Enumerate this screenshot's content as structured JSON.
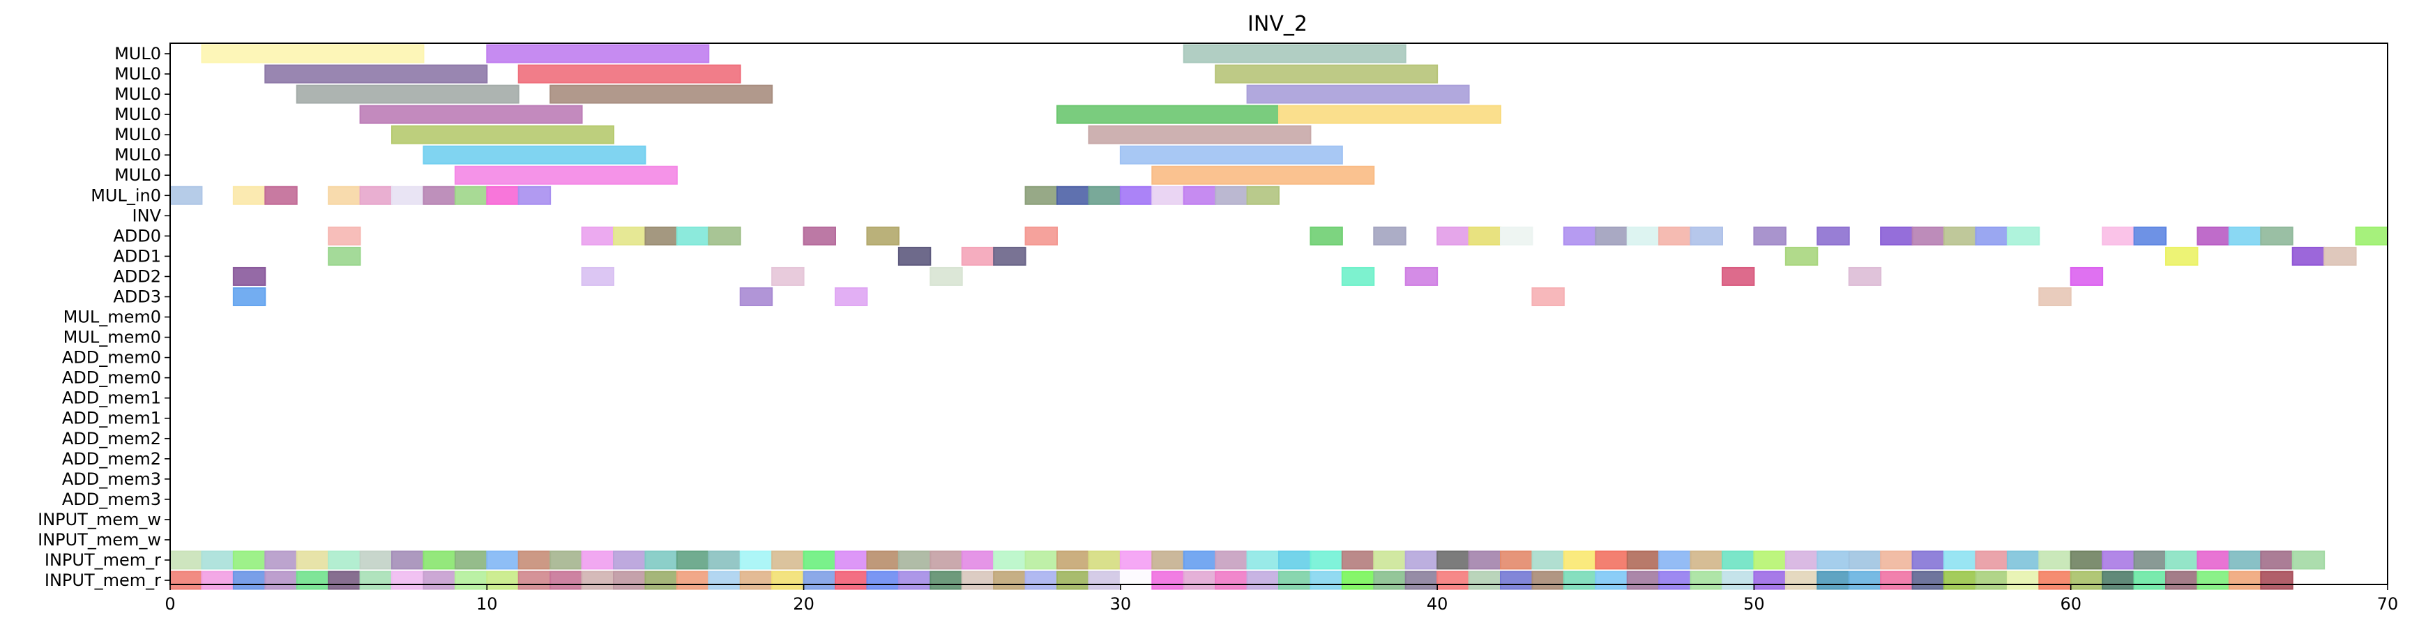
{
  "chart_data": {
    "type": "gantt",
    "title": "INV_2",
    "xlabel": "",
    "ylabel": "",
    "xlim": [
      0,
      70
    ],
    "xticks": [
      "0",
      "10",
      "20",
      "30",
      "40",
      "50",
      "60",
      "70"
    ],
    "grid": false,
    "rows": [
      "MUL0",
      "MUL0",
      "MUL0",
      "MUL0",
      "MUL0",
      "MUL0",
      "MUL0",
      "MUL_in0",
      "INV",
      "ADD0",
      "ADD1",
      "ADD2",
      "ADD3",
      "MUL_mem0",
      "MUL_mem0",
      "ADD_mem0",
      "ADD_mem0",
      "ADD_mem1",
      "ADD_mem1",
      "ADD_mem2",
      "ADD_mem2",
      "ADD_mem3",
      "ADD_mem3",
      "INPUT_mem_w",
      "INPUT_mem_w",
      "INPUT_mem_r",
      "INPUT_mem_r"
    ],
    "bars": [
      {
        "row": 0,
        "start": 1,
        "end": 8,
        "color": "#fdf5b0"
      },
      {
        "row": 0,
        "start": 10,
        "end": 17,
        "color": "#c07ef0"
      },
      {
        "row": 0,
        "start": 32,
        "end": 39,
        "color": "#a9c9bd"
      },
      {
        "row": 1,
        "start": 3,
        "end": 10,
        "color": "#8e79a8"
      },
      {
        "row": 1,
        "start": 11,
        "end": 18,
        "color": "#ef6f7c"
      },
      {
        "row": 1,
        "start": 33,
        "end": 40,
        "color": "#b7c479"
      },
      {
        "row": 2,
        "start": 4,
        "end": 11,
        "color": "#a4aca9"
      },
      {
        "row": 2,
        "start": 12,
        "end": 19,
        "color": "#a88e80"
      },
      {
        "row": 2,
        "start": 34,
        "end": 41,
        "color": "#a99fd9"
      },
      {
        "row": 3,
        "start": 6,
        "end": 13,
        "color": "#bc7db7"
      },
      {
        "row": 3,
        "start": 28,
        "end": 35,
        "color": "#6cc770"
      },
      {
        "row": 3,
        "start": 35,
        "end": 42,
        "color": "#f9db81"
      },
      {
        "row": 4,
        "start": 7,
        "end": 14,
        "color": "#b6ca6f"
      },
      {
        "row": 4,
        "start": 29,
        "end": 36,
        "color": "#c8a9a8"
      },
      {
        "row": 5,
        "start": 8,
        "end": 15,
        "color": "#72cff0"
      },
      {
        "row": 5,
        "start": 30,
        "end": 37,
        "color": "#9fc2f3"
      },
      {
        "row": 6,
        "start": 9,
        "end": 16,
        "color": "#f487e6"
      },
      {
        "row": 6,
        "start": 31,
        "end": 38,
        "color": "#f9bb84"
      },
      {
        "row": 7,
        "start": 0,
        "end": 1,
        "color": "#aec6e6"
      },
      {
        "row": 7,
        "start": 2,
        "end": 3,
        "color": "#fbe8a8"
      },
      {
        "row": 7,
        "start": 3,
        "end": 4,
        "color": "#c26b97"
      },
      {
        "row": 7,
        "start": 5,
        "end": 6,
        "color": "#f7d7a4"
      },
      {
        "row": 7,
        "start": 6,
        "end": 7,
        "color": "#e7a6cc"
      },
      {
        "row": 7,
        "start": 7,
        "end": 8,
        "color": "#e7e1f3"
      },
      {
        "row": 7,
        "start": 8,
        "end": 9,
        "color": "#b784b4"
      },
      {
        "row": 7,
        "start": 9,
        "end": 10,
        "color": "#9ed68a"
      },
      {
        "row": 7,
        "start": 10,
        "end": 11,
        "color": "#f767d6"
      },
      {
        "row": 7,
        "start": 11,
        "end": 12,
        "color": "#a88ff0"
      },
      {
        "row": 7,
        "start": 27,
        "end": 28,
        "color": "#8ca07a"
      },
      {
        "row": 7,
        "start": 28,
        "end": 29,
        "color": "#4e62a6"
      },
      {
        "row": 7,
        "start": 29,
        "end": 30,
        "color": "#6aa08e"
      },
      {
        "row": 7,
        "start": 30,
        "end": 31,
        "color": "#a276f6"
      },
      {
        "row": 7,
        "start": 31,
        "end": 32,
        "color": "#e8d0f2"
      },
      {
        "row": 7,
        "start": 32,
        "end": 33,
        "color": "#c07ef0"
      },
      {
        "row": 7,
        "start": 33,
        "end": 34,
        "color": "#b4b0cc"
      },
      {
        "row": 7,
        "start": 34,
        "end": 35,
        "color": "#b1c47f"
      },
      {
        "row": 9,
        "start": 5,
        "end": 6,
        "color": "#f6b7b2"
      },
      {
        "row": 9,
        "start": 13,
        "end": 14,
        "color": "#eaa1ee"
      },
      {
        "row": 9,
        "start": 14,
        "end": 15,
        "color": "#e3e58a"
      },
      {
        "row": 9,
        "start": 15,
        "end": 16,
        "color": "#9a8d72"
      },
      {
        "row": 9,
        "start": 16,
        "end": 17,
        "color": "#7fe8d8"
      },
      {
        "row": 9,
        "start": 17,
        "end": 18,
        "color": "#9fbf89"
      },
      {
        "row": 9,
        "start": 20,
        "end": 21,
        "color": "#b56a9b"
      },
      {
        "row": 9,
        "start": 22,
        "end": 23,
        "color": "#b2a86c"
      },
      {
        "row": 9,
        "start": 27,
        "end": 28,
        "color": "#f49891"
      },
      {
        "row": 9,
        "start": 36,
        "end": 37,
        "color": "#6fcf72"
      },
      {
        "row": 9,
        "start": 38,
        "end": 39,
        "color": "#a3a4c0"
      },
      {
        "row": 9,
        "start": 40,
        "end": 41,
        "color": "#e29ce8"
      },
      {
        "row": 9,
        "start": 41,
        "end": 42,
        "color": "#e6df72"
      },
      {
        "row": 9,
        "start": 42,
        "end": 43,
        "color": "#ecf4f1"
      },
      {
        "row": 9,
        "start": 44,
        "end": 45,
        "color": "#ae90f0"
      },
      {
        "row": 9,
        "start": 45,
        "end": 46,
        "color": "#a0a0bd"
      },
      {
        "row": 9,
        "start": 46,
        "end": 47,
        "color": "#d9f3f0"
      },
      {
        "row": 9,
        "start": 47,
        "end": 48,
        "color": "#f4b4aa"
      },
      {
        "row": 9,
        "start": 48,
        "end": 49,
        "color": "#aec1e9"
      },
      {
        "row": 9,
        "start": 50,
        "end": 51,
        "color": "#a088c8"
      },
      {
        "row": 9,
        "start": 52,
        "end": 53,
        "color": "#8d70d0"
      },
      {
        "row": 9,
        "start": 54,
        "end": 55,
        "color": "#8a5ed6"
      },
      {
        "row": 9,
        "start": 55,
        "end": 56,
        "color": "#b67fb2"
      },
      {
        "row": 9,
        "start": 56,
        "end": 57,
        "color": "#b8c28f"
      },
      {
        "row": 9,
        "start": 57,
        "end": 58,
        "color": "#8f9df0"
      },
      {
        "row": 9,
        "start": 58,
        "end": 59,
        "color": "#a6f2d8"
      },
      {
        "row": 9,
        "start": 61,
        "end": 62,
        "color": "#f9bde6"
      },
      {
        "row": 9,
        "start": 62,
        "end": 63,
        "color": "#5e86e2"
      },
      {
        "row": 9,
        "start": 64,
        "end": 65,
        "color": "#b85cc4"
      },
      {
        "row": 9,
        "start": 65,
        "end": 66,
        "color": "#7dd4f2"
      },
      {
        "row": 9,
        "start": 66,
        "end": 67,
        "color": "#8fb89a"
      },
      {
        "row": 9,
        "start": 69,
        "end": 70,
        "color": "#9cf06e"
      },
      {
        "row": 10,
        "start": 5,
        "end": 6,
        "color": "#9ad68e"
      },
      {
        "row": 10,
        "start": 23,
        "end": 24,
        "color": "#5e5a7e"
      },
      {
        "row": 10,
        "start": 25,
        "end": 26,
        "color": "#f4a4b8"
      },
      {
        "row": 10,
        "start": 26,
        "end": 27,
        "color": "#6a6488"
      },
      {
        "row": 10,
        "start": 51,
        "end": 52,
        "color": "#a9d67e"
      },
      {
        "row": 10,
        "start": 63,
        "end": 64,
        "color": "#ebf266"
      },
      {
        "row": 10,
        "start": 67,
        "end": 68,
        "color": "#9157d6"
      },
      {
        "row": 10,
        "start": 68,
        "end": 69,
        "color": "#dcc2b5"
      },
      {
        "row": 11,
        "start": 2,
        "end": 3,
        "color": "#8a5a9c"
      },
      {
        "row": 11,
        "start": 13,
        "end": 14,
        "color": "#d8c0f2"
      },
      {
        "row": 11,
        "start": 19,
        "end": 20,
        "color": "#e5c5d8"
      },
      {
        "row": 11,
        "start": 24,
        "end": 25,
        "color": "#d8e4d3"
      },
      {
        "row": 11,
        "start": 37,
        "end": 38,
        "color": "#6ff1ca"
      },
      {
        "row": 11,
        "start": 39,
        "end": 40,
        "color": "#cf7fe3"
      },
      {
        "row": 11,
        "start": 49,
        "end": 50,
        "color": "#d95b7f"
      },
      {
        "row": 11,
        "start": 53,
        "end": 54,
        "color": "#ddbcd6"
      },
      {
        "row": 11,
        "start": 60,
        "end": 61,
        "color": "#db62ef"
      },
      {
        "row": 12,
        "start": 2,
        "end": 3,
        "color": "#64a4ef"
      },
      {
        "row": 12,
        "start": 18,
        "end": 19,
        "color": "#a88ad3"
      },
      {
        "row": 12,
        "start": 21,
        "end": 22,
        "color": "#dfa6f3"
      },
      {
        "row": 12,
        "start": 43,
        "end": 44,
        "color": "#f6b0b4"
      },
      {
        "row": 12,
        "start": 59,
        "end": 60,
        "color": "#e7c7b6"
      }
    ],
    "row25_colors": [
      "#c9e2b8",
      "#a9e0d9",
      "#94f07d",
      "#b59ac9",
      "#e4e0a0",
      "#abeccc",
      "#c2d1c6",
      "#a48eb8",
      "#88e56e",
      "#89b57e",
      "#82b7f5",
      "#c78e78",
      "#a5b58f",
      "#f09ff0",
      "#b7a0da",
      "#7fcac3",
      "#62a384",
      "#8ac1c0",
      "#a4f5f6",
      "#d7bc92",
      "#6bf07e",
      "#d98cf6",
      "#b88e6c",
      "#a7b59d",
      "#c4a0a4",
      "#e28ae4",
      "#b8f6c8",
      "#b8ee9f",
      "#c5a672",
      "#d5dd7f",
      "#f49ef4",
      "#c5b090",
      "#669ff0",
      "#c7a0c0",
      "#8ee8e6",
      "#65cfe8",
      "#72f2d6",
      "#b47d7d",
      "#cce698",
      "#b5a6dc",
      "#6e6e6e",
      "#a383ac",
      "#e38a6b",
      "#a8dccc",
      "#fae870",
      "#f27262",
      "#b06b5a",
      "#88b5f4",
      "#d2b68a",
      "#6de3c3",
      "#b6f470",
      "#d6b2e0",
      "#9bc9ea",
      "#a0c4e1",
      "#efb69c",
      "#8574d6",
      "#8ee2f2",
      "#e89aa2",
      "#7ec3da",
      "#c4e6b2",
      "#6f8260",
      "#aa7ae4",
      "#7c8f8a",
      "#88e2c2",
      "#e665cf",
      "#7cbac0",
      "#a26f8b",
      "#a3d9a4"
    ],
    "row26_colors": [
      "#ef8076",
      "#f29ee3",
      "#6a95e6",
      "#b695c9",
      "#71e28d",
      "#7a5f84",
      "#a7e0b6",
      "#f0bbf1",
      "#c79fd0",
      "#b4ef9b",
      "#c8eb86",
      "#d0878d",
      "#c87598",
      "#d0b2b1",
      "#bf98a2",
      "#9bae6c",
      "#f09f7c",
      "#abd2f0",
      "#e0b48a",
      "#f2e072",
      "#7fa0e6",
      "#f25f76",
      "#6b8bf2",
      "#a48ce6",
      "#5e8f6e",
      "#d8c6bc",
      "#c0a678",
      "#a8b1f0",
      "#9eb55e",
      "#d0c6e4",
      "#fdfbff",
      "#ef6fe0",
      "#e2a9d4",
      "#f07ac7",
      "#c2ace0",
      "#7cd1a6",
      "#86d6f0",
      "#79f55a",
      "#88c08e",
      "#8b7f9c",
      "#f57b7b",
      "#b2d0b4",
      "#7479d4",
      "#a98b76",
      "#79dcb8",
      "#7ec8f6",
      "#a27aa0",
      "#937cf0",
      "#a6e29e",
      "#bfe0e8",
      "#9d6be6",
      "#e2d5b9",
      "#4f9abb",
      "#68b2e0",
      "#f072a4",
      "#5f6692",
      "#9ac64a",
      "#a8d07c",
      "#e7f3ae",
      "#f47f62",
      "#a8c168",
      "#507d6a",
      "#6ae8a4",
      "#9a6f7c",
      "#7ef07c",
      "#f0a67a",
      "#a84e5a"
    ]
  }
}
